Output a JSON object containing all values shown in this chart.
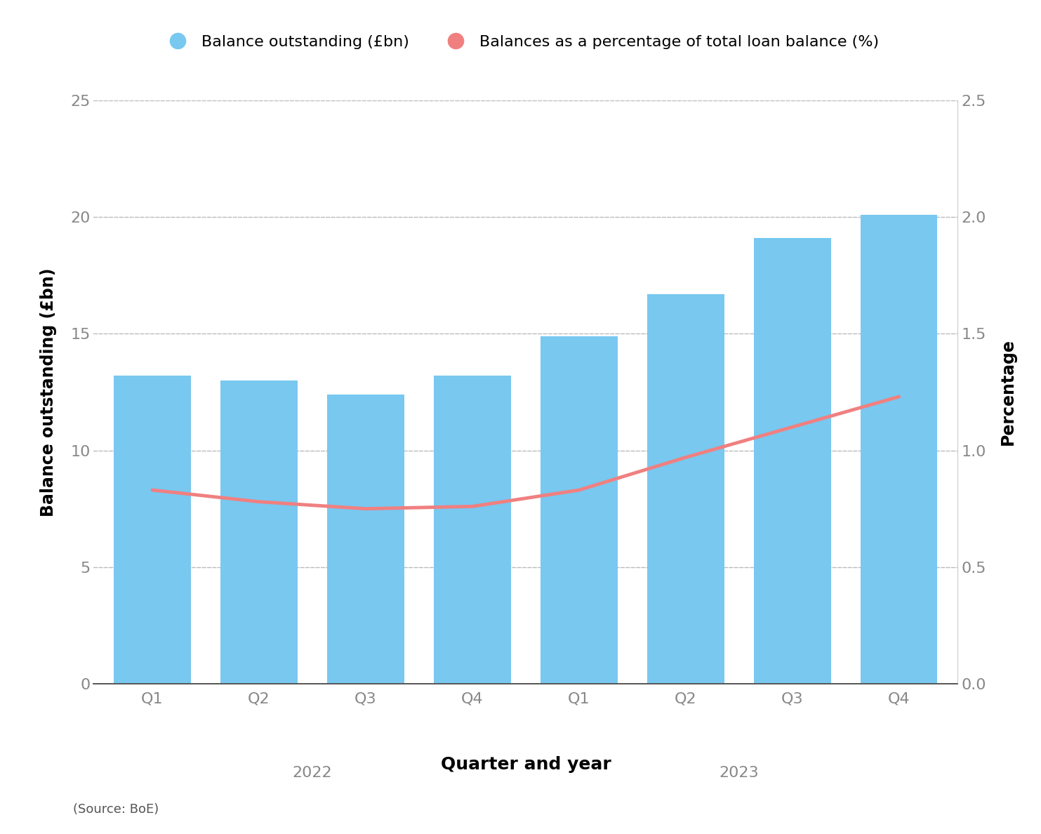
{
  "categories": [
    "Q1",
    "Q2",
    "Q3",
    "Q4",
    "Q1",
    "Q2",
    "Q3",
    "Q4"
  ],
  "bar_values": [
    13.2,
    13.0,
    12.4,
    13.2,
    14.9,
    16.7,
    19.1,
    20.1
  ],
  "line_values": [
    0.83,
    0.78,
    0.75,
    0.76,
    0.83,
    0.97,
    1.1,
    1.23
  ],
  "bar_color": "#78C8F0",
  "line_color": "#F08080",
  "bar_label": "Balance outstanding (£bn)",
  "line_label": "Balances as a percentage of total loan balance (%)",
  "ylabel_left": "Balance outstanding (£bn)",
  "ylabel_right": "Percentage",
  "xlabel": "Quarter and year",
  "ylim_left": [
    0,
    25
  ],
  "ylim_right": [
    0,
    2.5
  ],
  "yticks_left": [
    0,
    5,
    10,
    15,
    20,
    25
  ],
  "yticks_right": [
    0.0,
    0.5,
    1.0,
    1.5,
    2.0,
    2.5
  ],
  "year_labels": {
    "2022": 1.5,
    "2023": 5.5
  },
  "source_text": "(Source: BoE)",
  "background_color": "#ffffff",
  "grid_color": "#aaaaaa",
  "tick_color": "#888888",
  "figsize": [
    14.83,
    11.88
  ],
  "dpi": 100
}
